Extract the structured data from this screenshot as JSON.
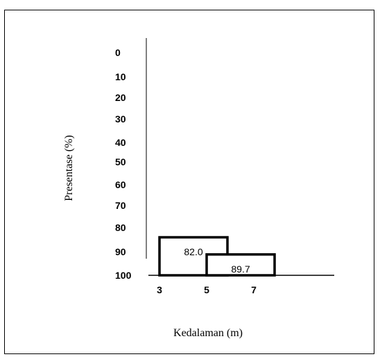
{
  "chart_data": {
    "type": "bar",
    "title": "",
    "xlabel": "Kedalaman (m)",
    "ylabel": "Presentase (%)",
    "y_ticks": [
      "0",
      "10",
      "20",
      "30",
      "40",
      "50",
      "60",
      "70",
      "80",
      "90",
      "100"
    ],
    "x_ticks": [
      "3",
      "5",
      "7"
    ],
    "ylim": [
      100,
      0
    ],
    "y_inverted": true,
    "series": [
      {
        "x_start": 3,
        "x_end": 6,
        "value": 82.0,
        "label": "82.0"
      },
      {
        "x_start": 5,
        "x_end": 8,
        "value": 89.7,
        "label": "89.7"
      }
    ],
    "grid": false,
    "legend": "none"
  }
}
